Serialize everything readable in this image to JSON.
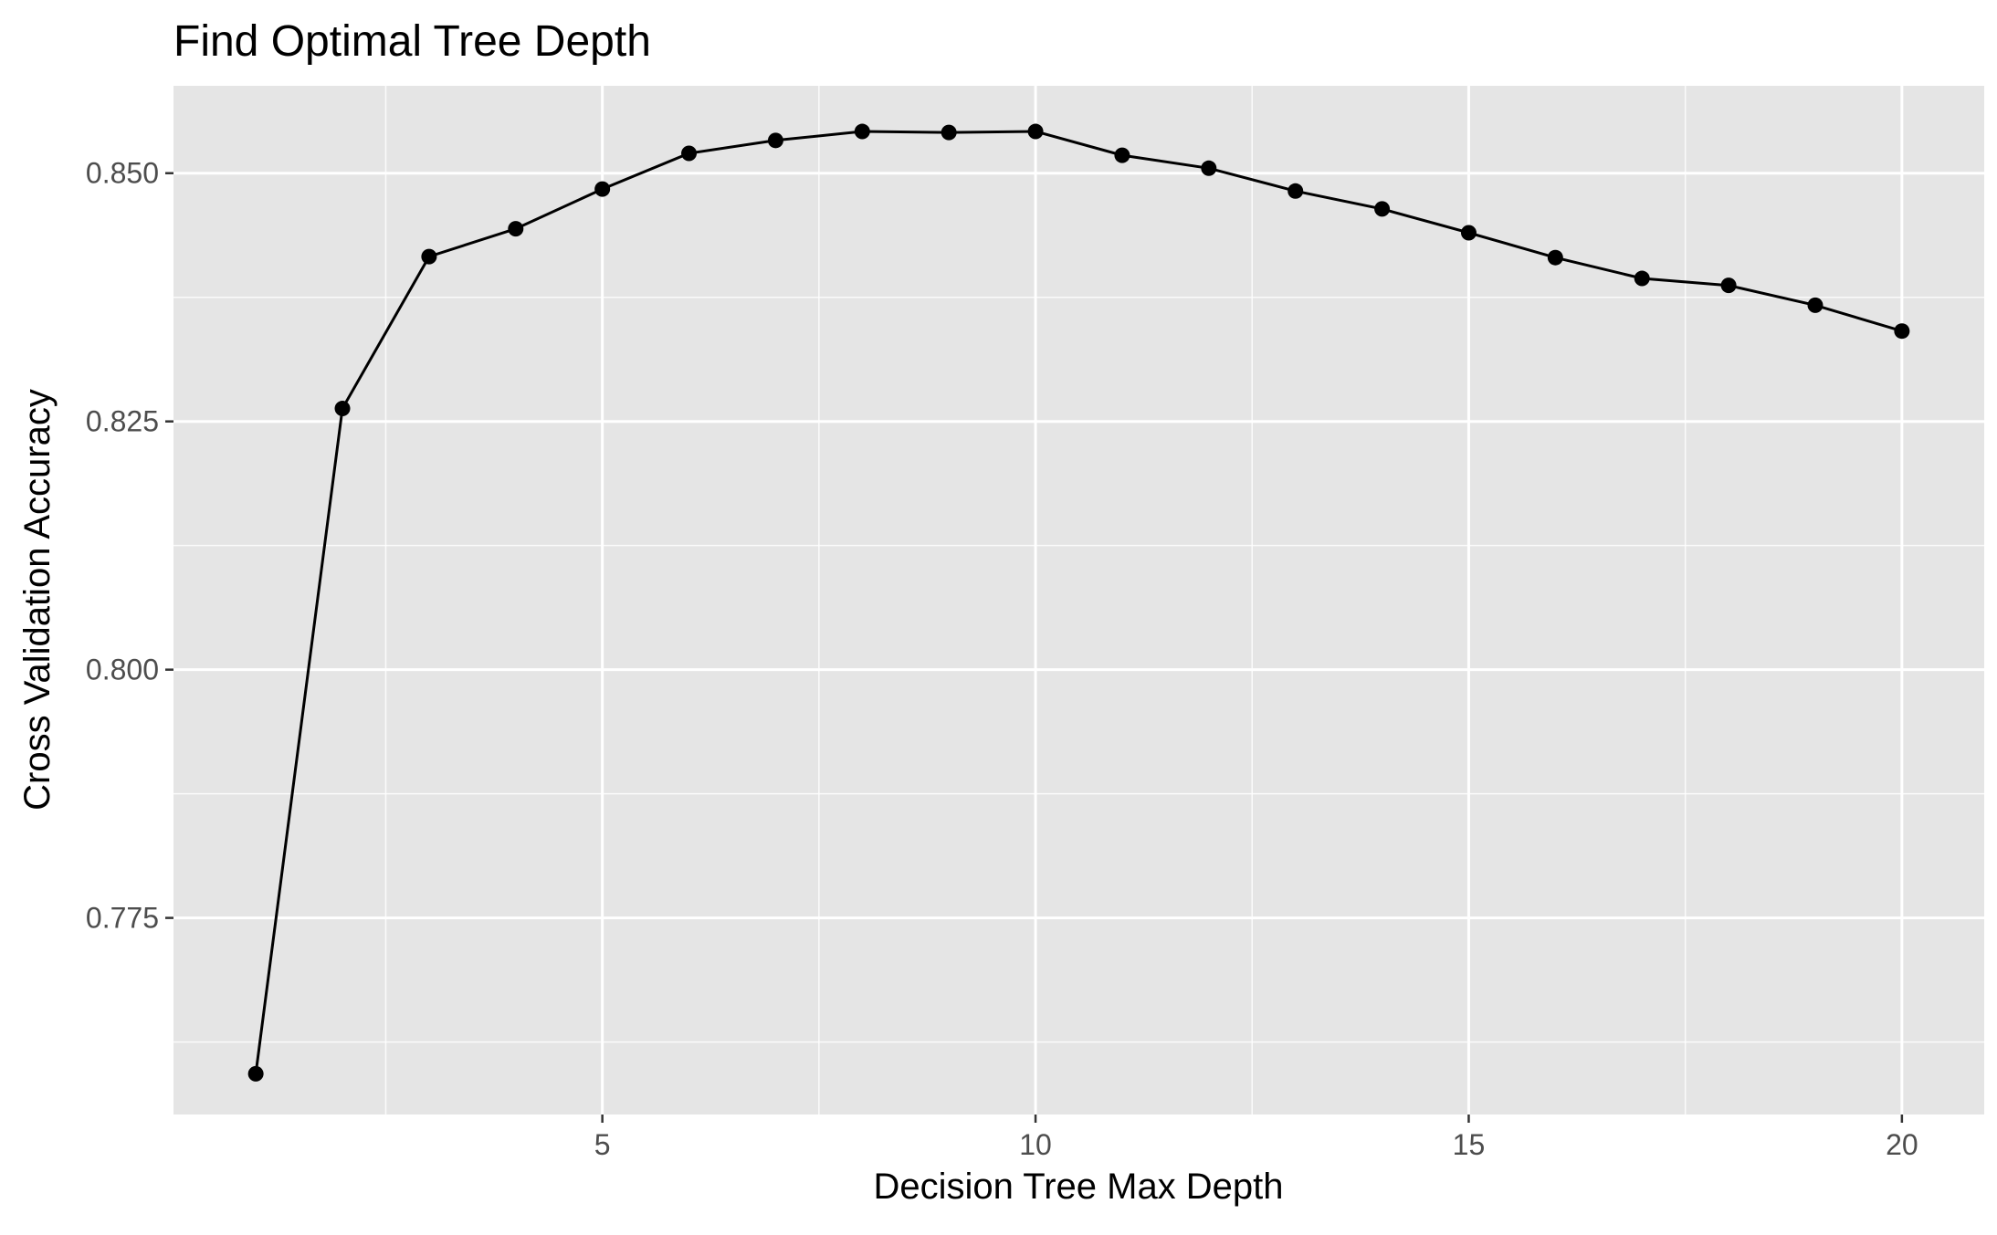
{
  "chart_data": {
    "type": "line",
    "title": "Find Optimal Tree Depth",
    "xlabel": "Decision Tree Max Depth",
    "ylabel": "Cross Validation Accuracy",
    "x": [
      1,
      2,
      3,
      4,
      5,
      6,
      7,
      8,
      9,
      10,
      11,
      12,
      13,
      14,
      15,
      16,
      17,
      18,
      19,
      20
    ],
    "y": [
      0.7593,
      0.8263,
      0.8416,
      0.8444,
      0.8484,
      0.852,
      0.8533,
      0.8542,
      0.8541,
      0.8542,
      0.8518,
      0.8505,
      0.8482,
      0.8464,
      0.844,
      0.8415,
      0.8394,
      0.8387,
      0.8367,
      0.8341
    ],
    "xlim": [
      0.05,
      20.95
    ],
    "ylim": [
      0.7552,
      0.8588
    ],
    "xticks": [
      5,
      10,
      15,
      20
    ],
    "xtick_labels": [
      "5",
      "10",
      "15",
      "20"
    ],
    "yticks": [
      0.775,
      0.8,
      0.825,
      0.85
    ],
    "ytick_labels": [
      "0.775",
      "0.800",
      "0.825",
      "0.850"
    ],
    "grid": true,
    "legend": "none",
    "colors": {
      "panel": "#e5e5e5",
      "grid": "#ffffff",
      "line": "#000000",
      "point": "#000000",
      "tick_text": "#4d4d4d"
    }
  }
}
